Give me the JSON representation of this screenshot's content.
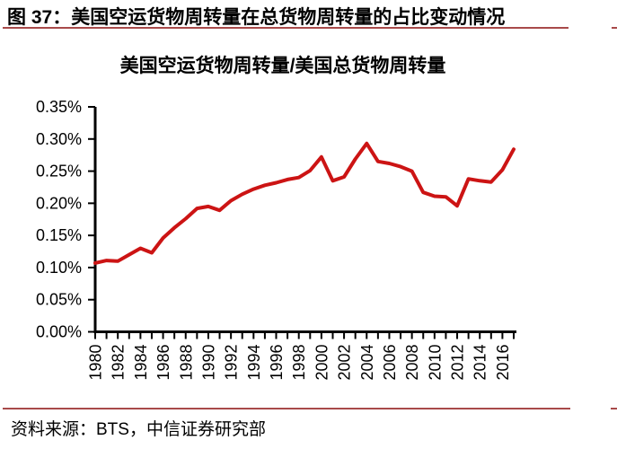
{
  "figure": {
    "caption": "图 37：美国空运货物周转量在总货物周转量的占比变动情况",
    "source": "资料来源：BTS，中信证券研究部"
  },
  "chart_data": {
    "type": "line",
    "title": "美国空运货物周转量/美国总货物周转量",
    "xlabel": "",
    "ylabel": "",
    "x": [
      1980,
      1981,
      1982,
      1983,
      1984,
      1985,
      1986,
      1987,
      1988,
      1989,
      1990,
      1991,
      1992,
      1993,
      1994,
      1995,
      1996,
      1997,
      1998,
      1999,
      2000,
      2001,
      2002,
      2003,
      2004,
      2005,
      2006,
      2007,
      2008,
      2009,
      2010,
      2011,
      2012,
      2013,
      2014,
      2015,
      2016,
      2017
    ],
    "values": [
      0.107,
      0.111,
      0.11,
      0.12,
      0.13,
      0.123,
      0.146,
      0.162,
      0.176,
      0.192,
      0.195,
      0.189,
      0.204,
      0.214,
      0.222,
      0.228,
      0.232,
      0.237,
      0.24,
      0.251,
      0.272,
      0.235,
      0.241,
      0.269,
      0.293,
      0.265,
      0.262,
      0.257,
      0.25,
      0.217,
      0.211,
      0.21,
      0.196,
      0.238,
      0.235,
      0.233,
      0.252,
      0.284
    ],
    "unit": "%",
    "ylim": [
      0,
      0.35
    ],
    "ytick_step": 0.05,
    "ytick_labels": [
      "0.00%",
      "0.05%",
      "0.10%",
      "0.15%",
      "0.20%",
      "0.25%",
      "0.30%",
      "0.35%"
    ],
    "xtick_label_every": 2,
    "grid": false,
    "legend": "none",
    "line_color": "#cc1414"
  },
  "colors": {
    "line": "#cc1414",
    "rule": "#a84a4a",
    "axis": "#000000",
    "text": "#000000"
  }
}
